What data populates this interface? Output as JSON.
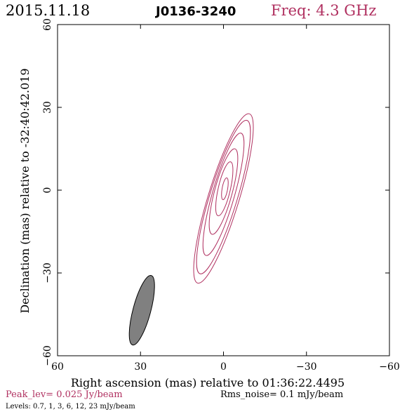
{
  "header": {
    "date": "2015.11.18",
    "source": "J0136-3240",
    "freq": "Freq: 4.3 GHz"
  },
  "footer": {
    "peak": "Peak_lev=  0.025 Jy/beam",
    "rms": "Rms_noise=   0.1 mJy/beam",
    "levels": "Levels: 0.7,    1,    3,    6,   12,   23  mJy/beam"
  },
  "colors": {
    "contour": "#b03060",
    "freq_text": "#b03060",
    "peak_text": "#b03060",
    "beam_fill": "#808080",
    "axes": "#000000"
  },
  "chart_data": {
    "type": "contour",
    "xlabel": "Right ascension (mas) relative to 01:36:22.4495",
    "ylabel": "Declination (mas) relative to -32:40:42.019",
    "xlim": [
      60,
      -60
    ],
    "ylim": [
      -60,
      60
    ],
    "xticks": [
      60,
      30,
      0,
      -30,
      -60
    ],
    "yticks": [
      -60,
      -30,
      0,
      30,
      60
    ],
    "xtick_labels": [
      "60",
      "30",
      "0",
      "−30",
      "−60"
    ],
    "ytick_labels": [
      "−60",
      "−30",
      "0",
      "30",
      "60"
    ],
    "contour_levels_mJy": [
      0.7,
      1,
      3,
      6,
      12,
      23
    ],
    "contours": [
      {
        "level": 0.7,
        "center": [
          0,
          -3
        ],
        "semi_major": 32,
        "semi_minor": 5.6,
        "pa_deg": -17
      },
      {
        "level": 1,
        "center": [
          0,
          -2.5
        ],
        "semi_major": 29,
        "semi_minor": 5.0,
        "pa_deg": -17
      },
      {
        "level": 3,
        "center": [
          0,
          -1.5
        ],
        "semi_major": 23,
        "semi_minor": 4.0,
        "pa_deg": -16
      },
      {
        "level": 6,
        "center": [
          0,
          -0.5
        ],
        "semi_major": 16,
        "semi_minor": 3.2,
        "pa_deg": -15
      },
      {
        "level": 12,
        "center": [
          -0.3,
          0.5
        ],
        "semi_major": 10,
        "semi_minor": 2.2,
        "pa_deg": -13
      },
      {
        "level": 23,
        "center": [
          -0.5,
          0.5
        ],
        "semi_major": 4,
        "semi_minor": 1.0,
        "pa_deg": -10
      }
    ],
    "beam": {
      "center": [
        29.5,
        -43.5
      ],
      "semi_major": 13,
      "semi_minor": 3.2,
      "pa_deg": 15
    }
  }
}
